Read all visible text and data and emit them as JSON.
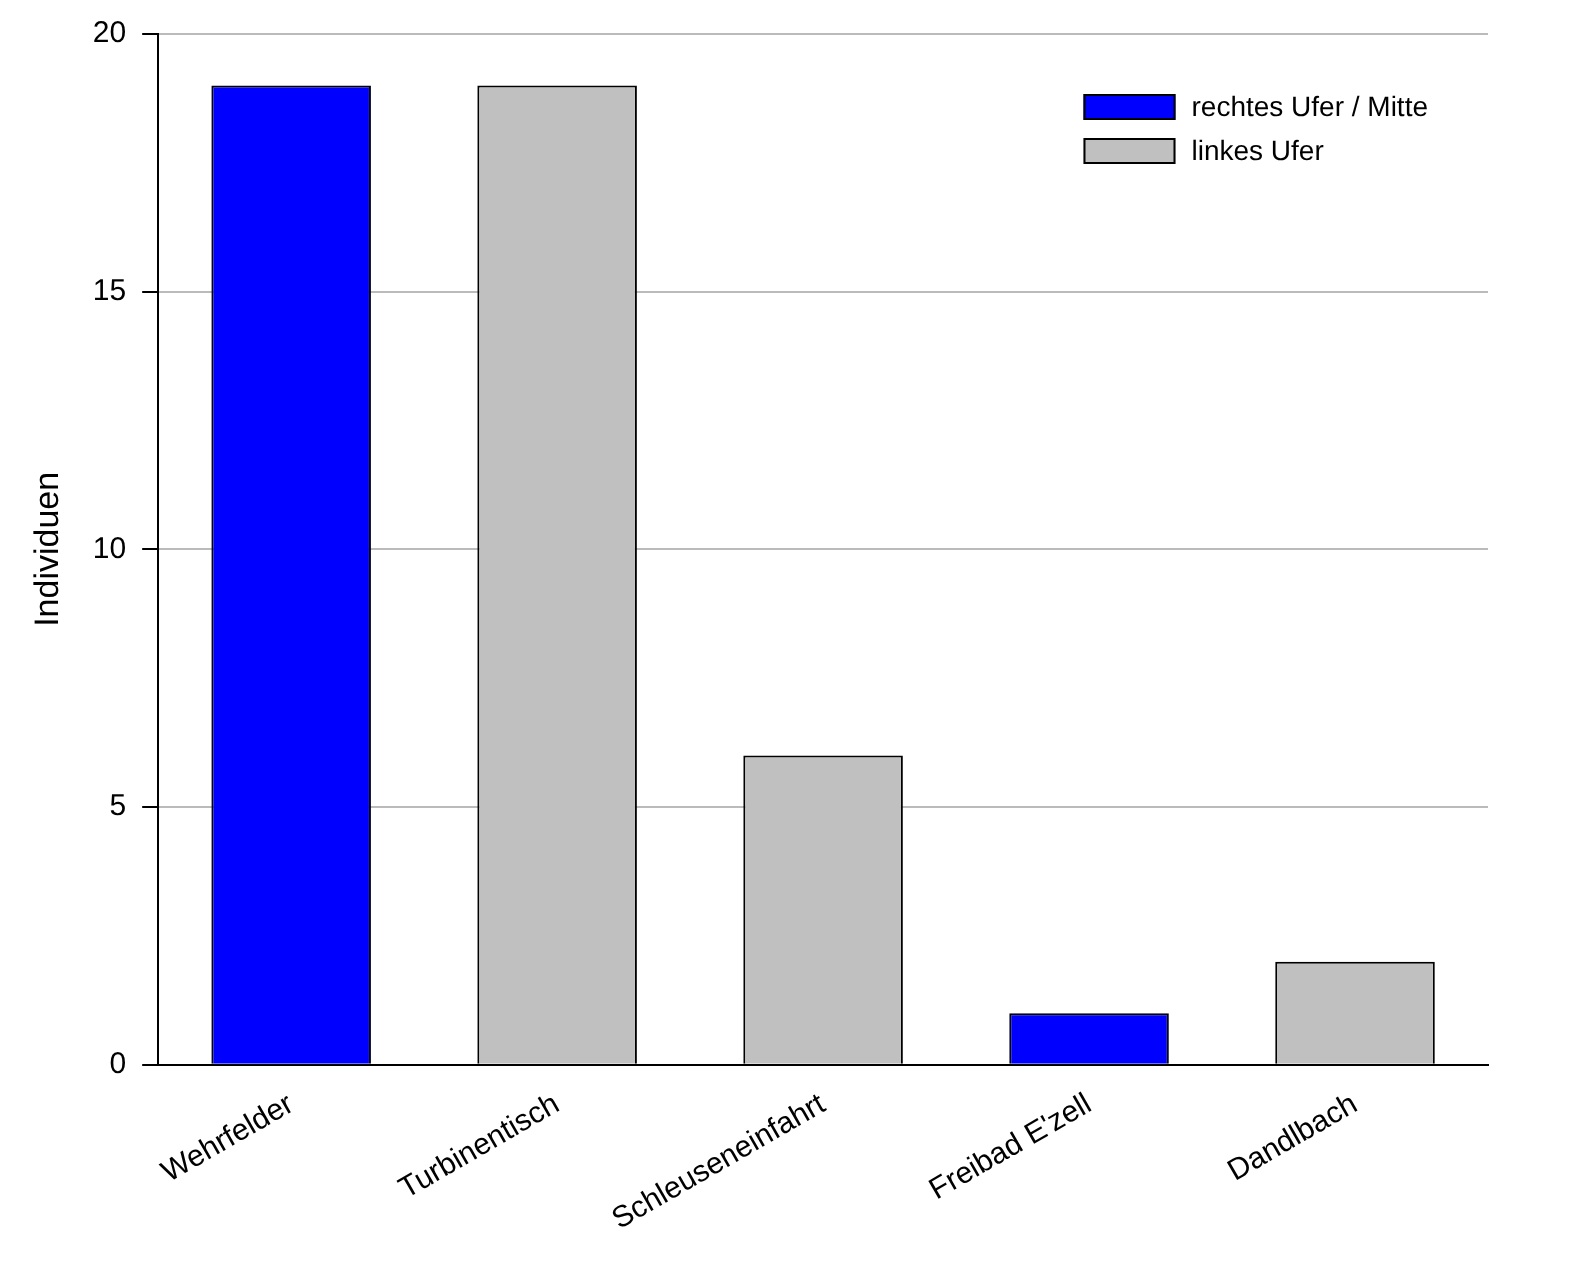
{
  "chart_data": {
    "type": "bar",
    "ylabel": "Individuen",
    "categories": [
      "Wehrfelder",
      "Turbinentisch",
      "Schleuseneinfahrt",
      "Freibad E'zell",
      "Dandlbach"
    ],
    "series": [
      {
        "name": "rechtes Ufer / Mitte",
        "color": "#0000ff",
        "values": [
          19,
          null,
          null,
          1,
          null
        ]
      },
      {
        "name": "linkes Ufer",
        "color": "#c0c0c0",
        "values": [
          null,
          19,
          6,
          null,
          2
        ]
      }
    ],
    "ylim": [
      0,
      20
    ],
    "yticks": [
      0,
      5,
      10,
      15,
      20
    ],
    "grid": "y",
    "legend": "top right"
  }
}
